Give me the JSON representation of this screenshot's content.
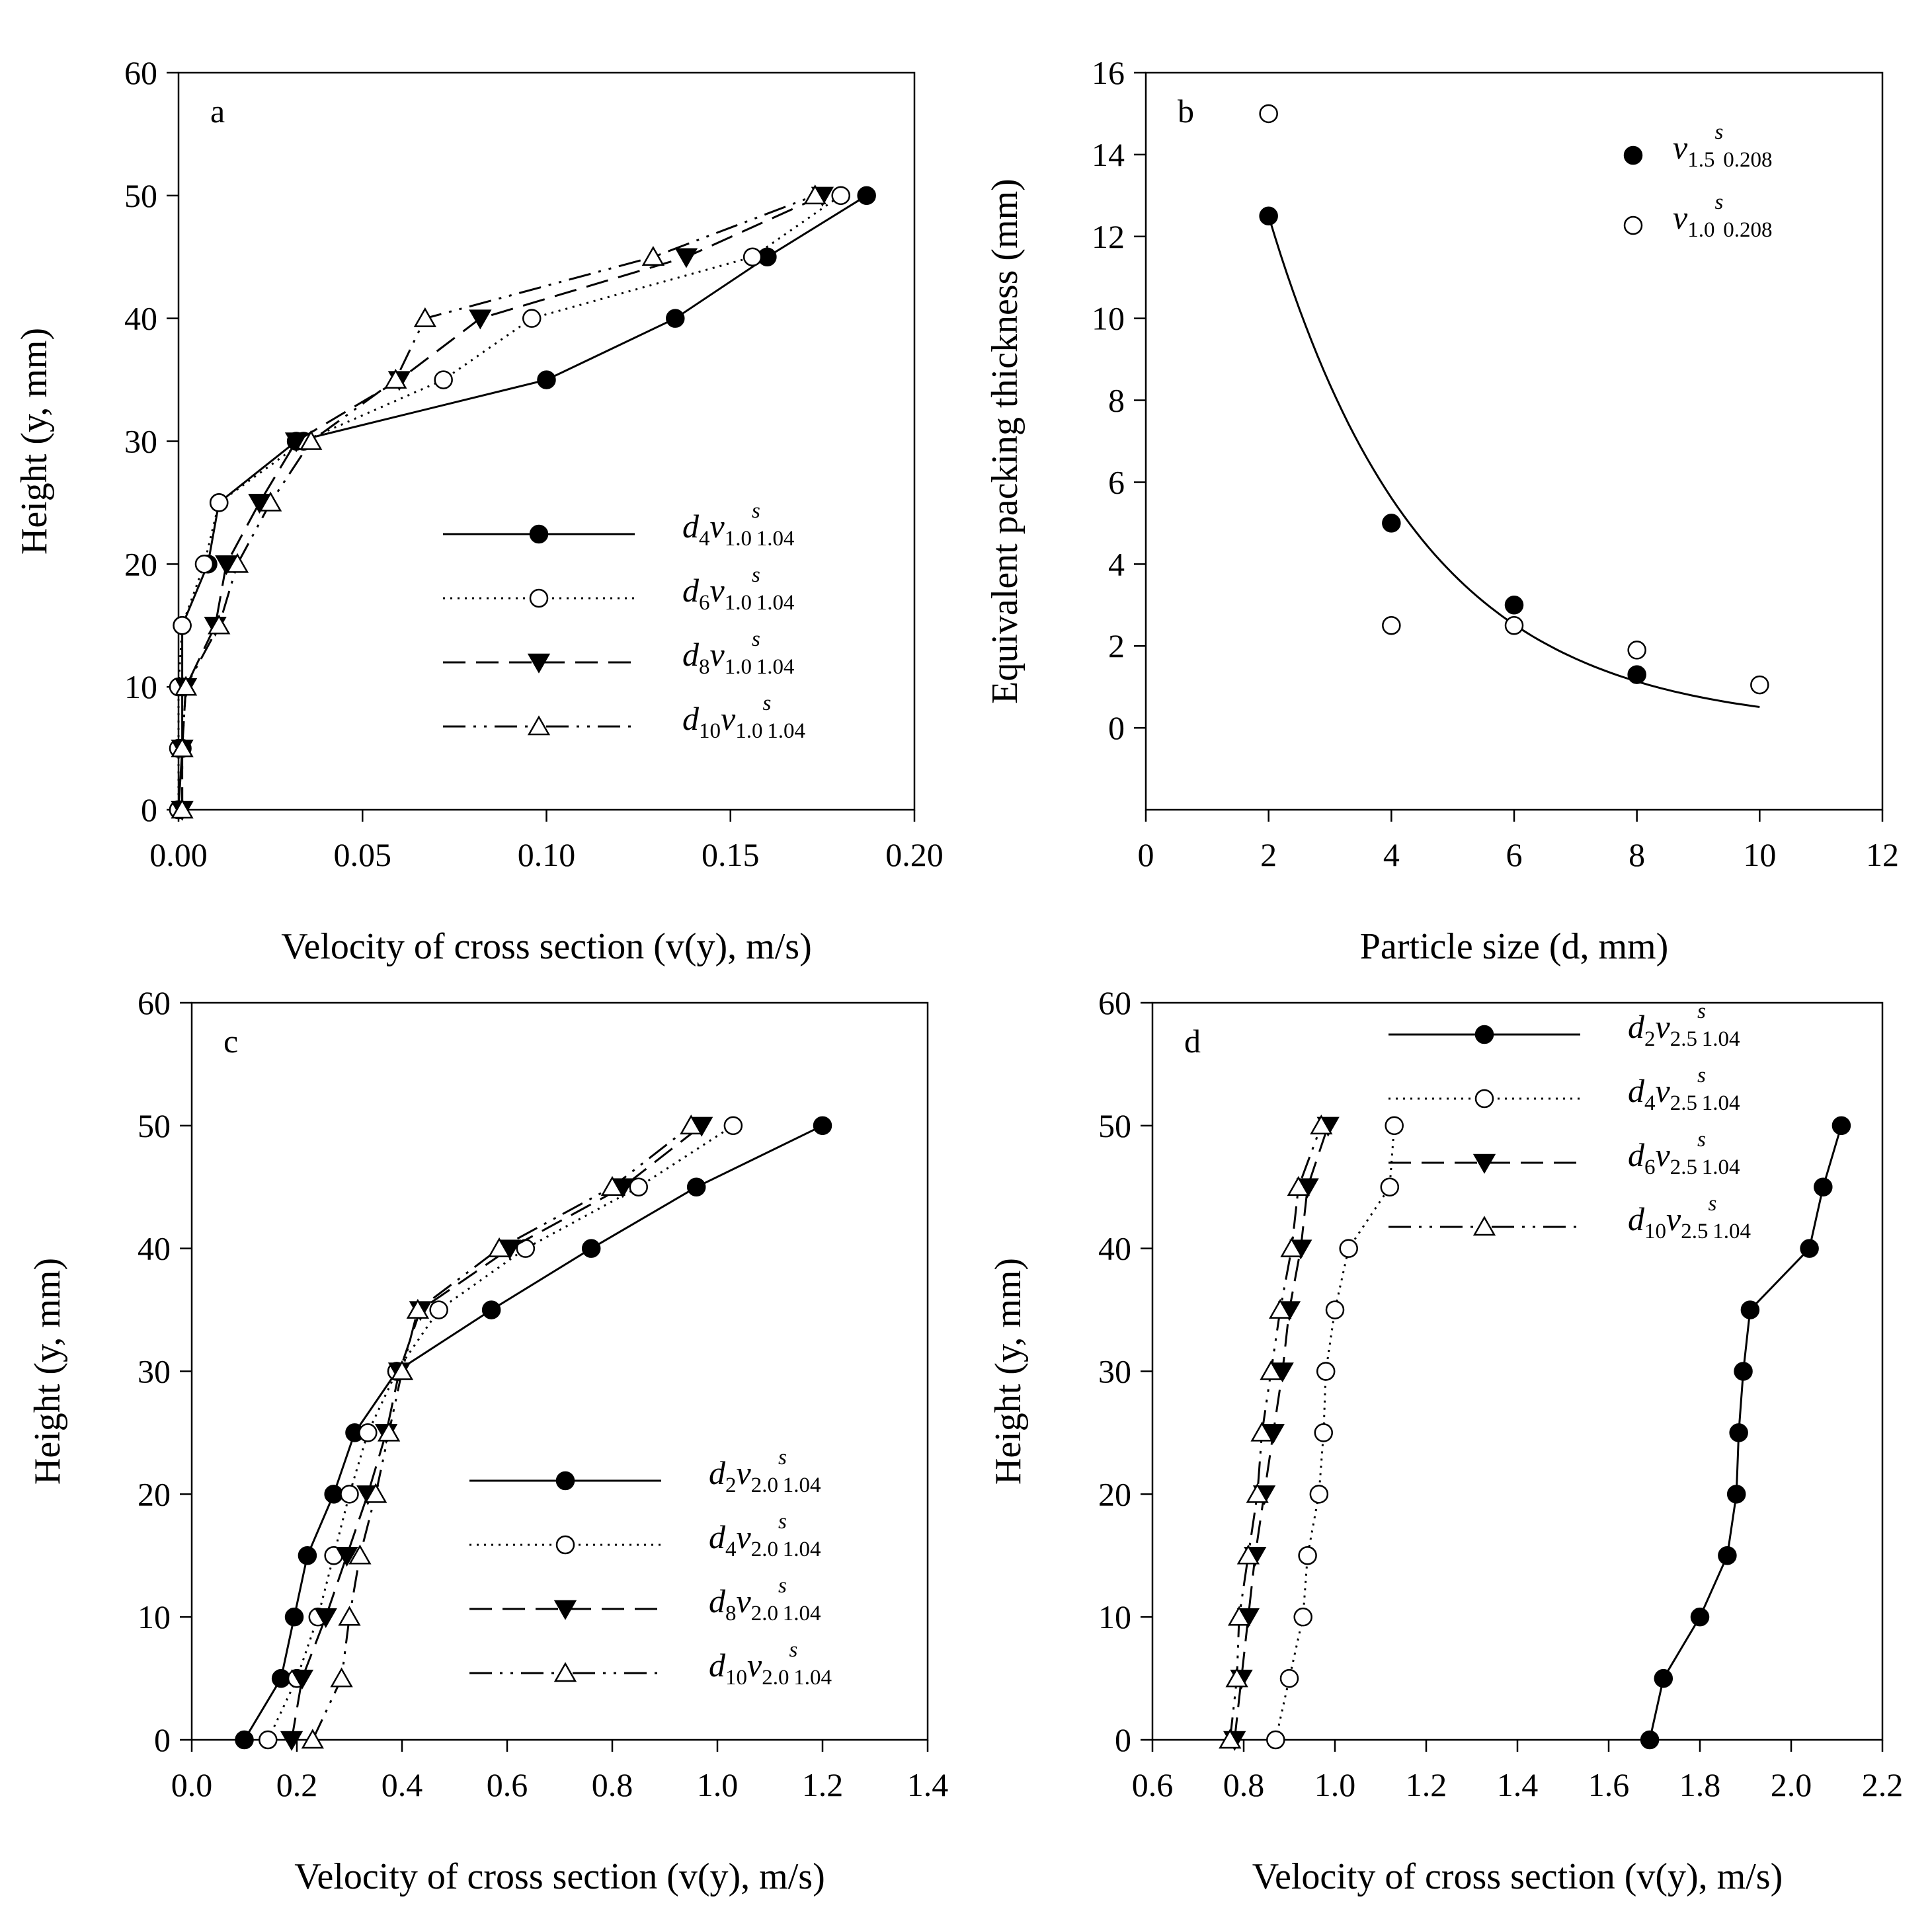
{
  "chart_data": [
    {
      "panel": "a",
      "type": "line",
      "xlabel": "Velocity of cross section (v(y), m/s)",
      "ylabel": "Height (y, mm)",
      "xlim": [
        0,
        0.2
      ],
      "ylim": [
        0,
        60
      ],
      "x_ticks": [
        0,
        0.05,
        0.1,
        0.15,
        0.2
      ],
      "x_tick_labels": [
        "0.00",
        "0.05",
        "0.10",
        "0.15",
        "0.20"
      ],
      "y_ticks": [
        0,
        10,
        20,
        30,
        40,
        50,
        60
      ],
      "y_tick_labels": [
        "0",
        "10",
        "20",
        "30",
        "40",
        "50",
        "60"
      ],
      "legend_position": "lower-right",
      "series": [
        {
          "name": "d4v1.0vs1.04",
          "legend": {
            "d": "d",
            "d_sub": "4",
            "v": "v",
            "v_sub": "1.0",
            "s_sup": "s",
            "s_sub": "1.04"
          },
          "style": "solid",
          "marker": "filled-circle",
          "points": [
            [
              0.0,
              0
            ],
            [
              0.001,
              5
            ],
            [
              0.001,
              10
            ],
            [
              0.001,
              15
            ],
            [
              0.008,
              20
            ],
            [
              0.011,
              25
            ],
            [
              0.032,
              30
            ],
            [
              0.1,
              35
            ],
            [
              0.135,
              40
            ],
            [
              0.16,
              45
            ],
            [
              0.187,
              50
            ]
          ]
        },
        {
          "name": "d6v1.0vs1.04",
          "legend": {
            "d": "d",
            "d_sub": "6",
            "v": "v",
            "v_sub": "1.0",
            "s_sup": "s",
            "s_sub": "1.04"
          },
          "style": "dotted",
          "marker": "open-circle",
          "points": [
            [
              0.0,
              0
            ],
            [
              0.0,
              5
            ],
            [
              0.0,
              10
            ],
            [
              0.001,
              15
            ],
            [
              0.007,
              20
            ],
            [
              0.011,
              25
            ],
            [
              0.034,
              30
            ],
            [
              0.072,
              35
            ],
            [
              0.096,
              40
            ],
            [
              0.156,
              45
            ],
            [
              0.18,
              50
            ]
          ]
        },
        {
          "name": "d8v1.0vs1.04",
          "legend": {
            "d": "d",
            "d_sub": "8",
            "v": "v",
            "v_sub": "1.0",
            "s_sup": "s",
            "s_sub": "1.04"
          },
          "style": "dashed",
          "marker": "filled-triangle-down",
          "points": [
            [
              0.001,
              0
            ],
            [
              0.001,
              5
            ],
            [
              0.002,
              10
            ],
            [
              0.01,
              15
            ],
            [
              0.013,
              20
            ],
            [
              0.022,
              25
            ],
            [
              0.032,
              30
            ],
            [
              0.06,
              35
            ],
            [
              0.082,
              40
            ],
            [
              0.138,
              45
            ],
            [
              0.175,
              50
            ]
          ]
        },
        {
          "name": "d10v1.0vs1.04",
          "legend": {
            "d": "d",
            "d_sub": "10",
            "v": "v",
            "v_sub": "1.0",
            "s_sup": "s",
            "s_sub": "1.04"
          },
          "style": "dashdotdot",
          "marker": "open-triangle-up",
          "points": [
            [
              0.001,
              0
            ],
            [
              0.001,
              5
            ],
            [
              0.002,
              10
            ],
            [
              0.011,
              15
            ],
            [
              0.016,
              20
            ],
            [
              0.025,
              25
            ],
            [
              0.036,
              30
            ],
            [
              0.059,
              35
            ],
            [
              0.067,
              40
            ],
            [
              0.129,
              45
            ],
            [
              0.173,
              50
            ]
          ]
        }
      ]
    },
    {
      "panel": "b",
      "type": "scatter",
      "xlabel": "Particle size (d, mm)",
      "ylabel": "Equivalent packing thickness (mm)",
      "xlim": [
        0,
        12
      ],
      "ylim": [
        -2,
        16
      ],
      "x_ticks": [
        0,
        2,
        4,
        6,
        8,
        10,
        12
      ],
      "x_tick_labels": [
        "0",
        "2",
        "4",
        "6",
        "8",
        "10",
        "12"
      ],
      "y_ticks": [
        0,
        2,
        4,
        6,
        8,
        10,
        12,
        14,
        16
      ],
      "y_tick_labels": [
        "0",
        "2",
        "4",
        "6",
        "8",
        "10",
        "12",
        "14",
        "16"
      ],
      "legend_position": "top-right",
      "series": [
        {
          "name": "v1.5vs0.208",
          "legend": {
            "d": "",
            "d_sub": "",
            "v": "v",
            "v_sub": "1.5",
            "s_sup": "s",
            "s_sub": "0.208"
          },
          "marker": "filled-circle",
          "points": [
            [
              2,
              12.5
            ],
            [
              4,
              5.0
            ],
            [
              6,
              3.0
            ],
            [
              8,
              1.3
            ]
          ]
        },
        {
          "name": "v1.0vs0.208",
          "legend": {
            "d": "",
            "d_sub": "",
            "v": "v",
            "v_sub": "1.0",
            "s_sup": "s",
            "s_sub": "0.208"
          },
          "marker": "open-circle",
          "points": [
            [
              2,
              15.0
            ],
            [
              4,
              2.5
            ],
            [
              6,
              2.5
            ],
            [
              8,
              1.9
            ],
            [
              10,
              1.05
            ]
          ]
        }
      ],
      "fit_curve": {
        "type": "exponential",
        "a": 12.5,
        "b": 0.4,
        "c": 0.0,
        "x_range": [
          2,
          10
        ]
      }
    },
    {
      "panel": "c",
      "type": "line",
      "xlabel": "Velocity of cross section (v(y), m/s)",
      "ylabel": "Height (y, mm)",
      "xlim": [
        0,
        1.4
      ],
      "ylim": [
        0,
        60
      ],
      "x_ticks": [
        0,
        0.2,
        0.4,
        0.6,
        0.8,
        1.0,
        1.2,
        1.4
      ],
      "x_tick_labels": [
        "0.0",
        "0.2",
        "0.4",
        "0.6",
        "0.8",
        "1.0",
        "1.2",
        "1.4"
      ],
      "y_ticks": [
        0,
        10,
        20,
        30,
        40,
        50,
        60
      ],
      "y_tick_labels": [
        "0",
        "10",
        "20",
        "30",
        "40",
        "50",
        "60"
      ],
      "legend_position": "lower-right",
      "series": [
        {
          "name": "d2v2.0vs1.04",
          "legend": {
            "d": "d",
            "d_sub": "2",
            "v": "v",
            "v_sub": "2.0",
            "s_sup": "s",
            "s_sub": "1.04"
          },
          "style": "solid",
          "marker": "filled-circle",
          "points": [
            [
              0.1,
              0
            ],
            [
              0.17,
              5
            ],
            [
              0.195,
              10
            ],
            [
              0.22,
              15
            ],
            [
              0.27,
              20
            ],
            [
              0.31,
              25
            ],
            [
              0.39,
              30
            ],
            [
              0.57,
              35
            ],
            [
              0.76,
              40
            ],
            [
              0.96,
              45
            ],
            [
              1.2,
              50
            ]
          ]
        },
        {
          "name": "d4v2.0vs1.04",
          "legend": {
            "d": "d",
            "d_sub": "4",
            "v": "v",
            "v_sub": "2.0",
            "s_sup": "s",
            "s_sub": "1.04"
          },
          "style": "dotted",
          "marker": "open-circle",
          "points": [
            [
              0.145,
              0
            ],
            [
              0.2,
              5
            ],
            [
              0.24,
              10
            ],
            [
              0.27,
              15
            ],
            [
              0.3,
              20
            ],
            [
              0.335,
              25
            ],
            [
              0.39,
              30
            ],
            [
              0.47,
              35
            ],
            [
              0.635,
              40
            ],
            [
              0.85,
              45
            ],
            [
              1.03,
              50
            ]
          ]
        },
        {
          "name": "d8v2.0vs1.04",
          "legend": {
            "d": "d",
            "d_sub": "8",
            "v": "v",
            "v_sub": "2.0",
            "s_sup": "s",
            "s_sub": "1.04"
          },
          "style": "dashed",
          "marker": "filled-triangle-down",
          "points": [
            [
              0.19,
              0
            ],
            [
              0.21,
              5
            ],
            [
              0.255,
              10
            ],
            [
              0.295,
              15
            ],
            [
              0.335,
              20
            ],
            [
              0.37,
              25
            ],
            [
              0.395,
              30
            ],
            [
              0.435,
              35
            ],
            [
              0.605,
              40
            ],
            [
              0.82,
              45
            ],
            [
              0.97,
              50
            ]
          ]
        },
        {
          "name": "d10v2.0vs1.04",
          "legend": {
            "d": "d",
            "d_sub": "10",
            "v": "v",
            "v_sub": "2.0",
            "s_sup": "s",
            "s_sub": "1.04"
          },
          "style": "dashdotdot",
          "marker": "open-triangle-up",
          "points": [
            [
              0.23,
              0
            ],
            [
              0.285,
              5
            ],
            [
              0.3,
              10
            ],
            [
              0.32,
              15
            ],
            [
              0.35,
              20
            ],
            [
              0.375,
              25
            ],
            [
              0.4,
              30
            ],
            [
              0.43,
              35
            ],
            [
              0.585,
              40
            ],
            [
              0.8,
              45
            ],
            [
              0.95,
              50
            ]
          ]
        }
      ]
    },
    {
      "panel": "d",
      "type": "line",
      "xlabel": "Velocity of cross section (v(y), m/s)",
      "ylabel": "Height (y, mm)",
      "xlim": [
        0.6,
        2.2
      ],
      "ylim": [
        0,
        60
      ],
      "x_ticks": [
        0.6,
        0.8,
        1.0,
        1.2,
        1.4,
        1.6,
        1.8,
        2.0,
        2.2
      ],
      "x_tick_labels": [
        "0.6",
        "0.8",
        "1.0",
        "1.2",
        "1.4",
        "1.6",
        "1.8",
        "2.0",
        "2.2"
      ],
      "y_ticks": [
        0,
        10,
        20,
        30,
        40,
        50,
        60
      ],
      "y_tick_labels": [
        "0",
        "10",
        "20",
        "30",
        "40",
        "50",
        "60"
      ],
      "legend_position": "top-center",
      "series": [
        {
          "name": "d2v2.5vs1.04",
          "legend": {
            "d": "d",
            "d_sub": "2",
            "v": "v",
            "v_sub": "2.5",
            "s_sup": "s",
            "s_sub": "1.04"
          },
          "style": "solid",
          "marker": "filled-circle",
          "points": [
            [
              1.69,
              0
            ],
            [
              1.72,
              5
            ],
            [
              1.8,
              10
            ],
            [
              1.86,
              15
            ],
            [
              1.88,
              20
            ],
            [
              1.885,
              25
            ],
            [
              1.895,
              30
            ],
            [
              1.91,
              35
            ],
            [
              2.04,
              40
            ],
            [
              2.07,
              45
            ],
            [
              2.11,
              50
            ]
          ]
        },
        {
          "name": "d4v2.5vs1.04",
          "legend": {
            "d": "d",
            "d_sub": "4",
            "v": "v",
            "v_sub": "2.5",
            "s_sup": "s",
            "s_sub": "1.04"
          },
          "style": "dotted",
          "marker": "open-circle",
          "points": [
            [
              0.87,
              0
            ],
            [
              0.9,
              5
            ],
            [
              0.93,
              10
            ],
            [
              0.94,
              15
            ],
            [
              0.965,
              20
            ],
            [
              0.975,
              25
            ],
            [
              0.98,
              30
            ],
            [
              1.0,
              35
            ],
            [
              1.03,
              40
            ],
            [
              1.12,
              45
            ],
            [
              1.13,
              50
            ]
          ]
        },
        {
          "name": "d6v2.5vs1.04",
          "legend": {
            "d": "d",
            "d_sub": "6",
            "v": "v",
            "v_sub": "2.5",
            "s_sup": "s",
            "s_sub": "1.04"
          },
          "style": "dashed",
          "marker": "filled-triangle-down",
          "points": [
            [
              0.78,
              0
            ],
            [
              0.795,
              5
            ],
            [
              0.81,
              10
            ],
            [
              0.825,
              15
            ],
            [
              0.845,
              20
            ],
            [
              0.865,
              25
            ],
            [
              0.885,
              30
            ],
            [
              0.9,
              35
            ],
            [
              0.925,
              40
            ],
            [
              0.94,
              45
            ],
            [
              0.985,
              50
            ]
          ]
        },
        {
          "name": "d10v2.5vs1.04",
          "legend": {
            "d": "d",
            "d_sub": "10",
            "v": "v",
            "v_sub": "2.5",
            "s_sup": "s",
            "s_sub": "1.04"
          },
          "style": "dashdotdot",
          "marker": "open-triangle-up",
          "points": [
            [
              0.77,
              0
            ],
            [
              0.785,
              5
            ],
            [
              0.79,
              10
            ],
            [
              0.81,
              15
            ],
            [
              0.83,
              20
            ],
            [
              0.84,
              25
            ],
            [
              0.86,
              30
            ],
            [
              0.88,
              35
            ],
            [
              0.905,
              40
            ],
            [
              0.92,
              45
            ],
            [
              0.97,
              50
            ]
          ]
        }
      ]
    }
  ]
}
